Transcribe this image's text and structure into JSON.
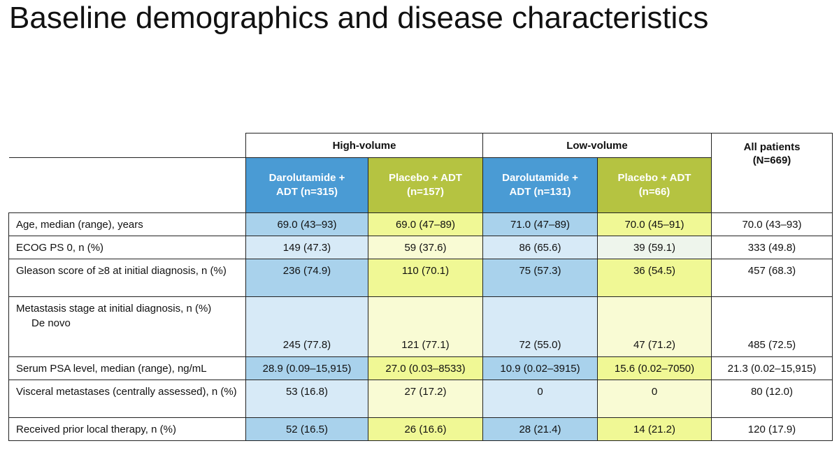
{
  "title": "Baseline demographics and disease characteristics",
  "header": {
    "high_volume": "High-volume",
    "low_volume": "Low-volume",
    "all_patients_line1": "All patients",
    "all_patients_line2": "(N=669)",
    "subheaders": [
      {
        "line1": "Darolutamide +",
        "line2": "ADT (n=315)"
      },
      {
        "line1": "Placebo + ADT",
        "line2": "(n=157)"
      },
      {
        "line1": "Darolutamide +",
        "line2": "ADT (n=131)"
      },
      {
        "line1": "Placebo + ADT",
        "line2": "(n=66)"
      }
    ]
  },
  "colors": {
    "darolutamide_header": "#4a9bd4",
    "placebo_header": "#b5c341"
  },
  "rows": [
    {
      "label": "Age, median (range), years",
      "values": [
        "69.0 (43–93)",
        "69.0 (47–89)",
        "71.0 (47–89)",
        "70.0 (45–91)",
        "70.0 (43–93)"
      ]
    },
    {
      "label": "ECOG PS 0, n (%)",
      "values": [
        "149 (47.3)",
        "59 (37.6)",
        "86 (65.6)",
        "39 (59.1)",
        "333 (49.8)"
      ]
    },
    {
      "label": "Gleason score of ≥8 at initial diagnosis, n (%)",
      "values": [
        "236 (74.9)",
        "110 (70.1)",
        "75 (57.3)",
        "36 (54.5)",
        "457 (68.3)"
      ]
    },
    {
      "label": "Metastasis stage at initial diagnosis, n (%)",
      "sublabel": "De novo",
      "values": [
        "245 (77.8)",
        "121 (77.1)",
        "72 (55.0)",
        "47 (71.2)",
        "485 (72.5)"
      ]
    },
    {
      "label": "Serum PSA level, median (range), ng/mL",
      "values": [
        "28.9 (0.09–15,915)",
        "27.0 (0.03–8533)",
        "10.9 (0.02–3915)",
        "15.6 (0.02–7050)",
        "21.3 (0.02–15,915)"
      ]
    },
    {
      "label": "Visceral metastases (centrally assessed), n (%)",
      "values": [
        "53 (16.8)",
        "27 (17.2)",
        "0",
        "0",
        "80 (12.0)"
      ]
    },
    {
      "label": "Received prior local therapy, n (%)",
      "values": [
        "52 (16.5)",
        "26 (16.6)",
        "28 (21.4)",
        "14 (21.2)",
        "120 (17.9)"
      ]
    }
  ]
}
